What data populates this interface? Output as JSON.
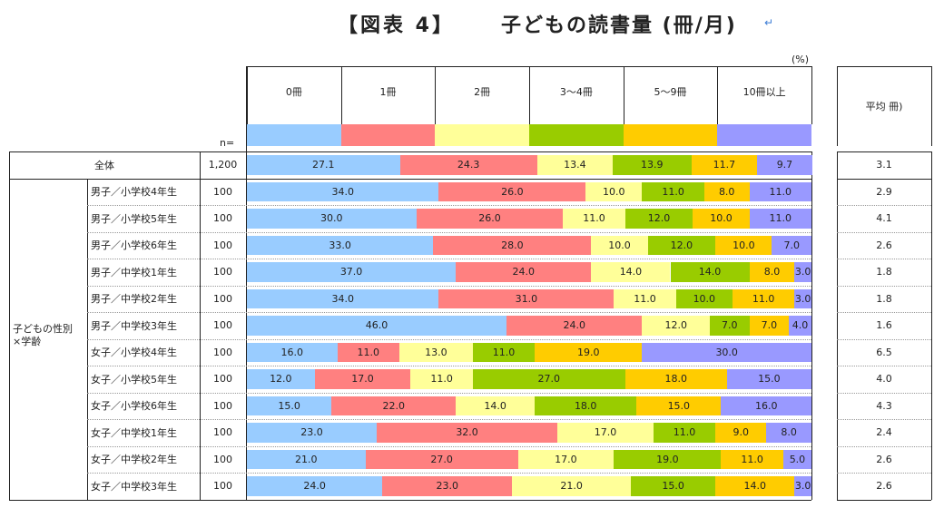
{
  "title": {
    "left": "【図表 4】",
    "right": "子どもの読書量 (冊/月)",
    "return_mark": "↵"
  },
  "unit": "(%)",
  "n_label": "n=",
  "mean_header": "平均 冊)",
  "group_label": "子どもの性別\n×学齢",
  "colors": [
    "#99ccff",
    "#ff8080",
    "#ffff99",
    "#99cc00",
    "#ffcc00",
    "#9999ff"
  ],
  "chart_data": {
    "type": "bar",
    "orientation": "horizontal",
    "stacked": true,
    "title": "子どもの読書量 (冊/月)",
    "xlabel": "(%)",
    "xlim": [
      0,
      100
    ],
    "legend": [
      "0冊",
      "1冊",
      "2冊",
      "3～4冊",
      "5～9冊",
      "10冊以上"
    ],
    "rows": [
      {
        "label": "全体",
        "n": "1,200",
        "values": [
          27.1,
          24.3,
          13.4,
          13.9,
          11.7,
          9.7
        ],
        "mean": "3.1"
      },
      {
        "label": "男子／小学校4年生",
        "n": "100",
        "values": [
          34.0,
          26.0,
          10.0,
          11.0,
          8.0,
          11.0
        ],
        "mean": "2.9"
      },
      {
        "label": "男子／小学校5年生",
        "n": "100",
        "values": [
          30.0,
          26.0,
          11.0,
          12.0,
          10.0,
          11.0
        ],
        "mean": "4.1"
      },
      {
        "label": "男子／小学校6年生",
        "n": "100",
        "values": [
          33.0,
          28.0,
          10.0,
          12.0,
          10.0,
          7.0
        ],
        "mean": "2.6"
      },
      {
        "label": "男子／中学校1年生",
        "n": "100",
        "values": [
          37.0,
          24.0,
          14.0,
          14.0,
          8.0,
          3.0
        ],
        "mean": "1.8"
      },
      {
        "label": "男子／中学校2年生",
        "n": "100",
        "values": [
          34.0,
          31.0,
          11.0,
          10.0,
          11.0,
          3.0
        ],
        "mean": "1.8"
      },
      {
        "label": "男子／中学校3年生",
        "n": "100",
        "values": [
          46.0,
          24.0,
          12.0,
          7.0,
          7.0,
          4.0
        ],
        "mean": "1.6"
      },
      {
        "label": "女子／小学校4年生",
        "n": "100",
        "values": [
          16.0,
          11.0,
          13.0,
          11.0,
          19.0,
          30.0
        ],
        "mean": "6.5"
      },
      {
        "label": "女子／小学校5年生",
        "n": "100",
        "values": [
          12.0,
          17.0,
          11.0,
          27.0,
          18.0,
          15.0
        ],
        "mean": "4.0"
      },
      {
        "label": "女子／小学校6年生",
        "n": "100",
        "values": [
          15.0,
          22.0,
          14.0,
          18.0,
          15.0,
          16.0
        ],
        "mean": "4.3"
      },
      {
        "label": "女子／中学校1年生",
        "n": "100",
        "values": [
          23.0,
          32.0,
          17.0,
          11.0,
          9.0,
          8.0
        ],
        "mean": "2.4"
      },
      {
        "label": "女子／中学校2年生",
        "n": "100",
        "values": [
          21.0,
          27.0,
          17.0,
          19.0,
          11.0,
          5.0
        ],
        "mean": "2.6"
      },
      {
        "label": "女子／中学校3年生",
        "n": "100",
        "values": [
          24.0,
          23.0,
          21.0,
          15.0,
          14.0,
          3.0
        ],
        "mean": "2.6"
      }
    ]
  }
}
